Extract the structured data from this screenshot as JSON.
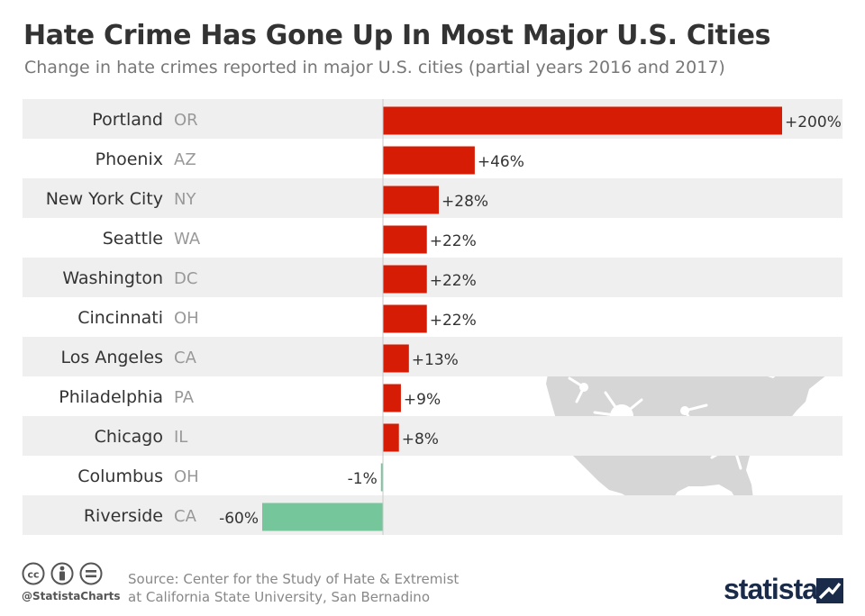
{
  "header": {
    "title": "Hate Crime Has Gone Up In Most Major U.S. Cities",
    "subtitle": "Change in hate crimes reported in major U.S. cities (partial years 2016 and 2017)"
  },
  "chart_data": {
    "type": "bar",
    "orientation": "horizontal",
    "title": "Hate Crime Has Gone Up In Most Major U.S. Cities",
    "subtitle": "Change in hate crimes reported in major U.S. cities (partial years 2016 and 2017)",
    "unit": "%",
    "categories": [
      {
        "city": "Portland",
        "state": "OR"
      },
      {
        "city": "Phoenix",
        "state": "AZ"
      },
      {
        "city": "New York City",
        "state": "NY"
      },
      {
        "city": "Seattle",
        "state": "WA"
      },
      {
        "city": "Washington",
        "state": "DC"
      },
      {
        "city": "Cincinnati",
        "state": "OH"
      },
      {
        "city": "Los Angeles",
        "state": "CA"
      },
      {
        "city": "Philadelphia",
        "state": "PA"
      },
      {
        "city": "Chicago",
        "state": "IL"
      },
      {
        "city": "Columbus",
        "state": "OH"
      },
      {
        "city": "Riverside",
        "state": "CA"
      }
    ],
    "values": [
      200,
      46,
      28,
      22,
      22,
      22,
      13,
      9,
      8,
      -1,
      -60
    ],
    "labels": [
      "+200%",
      "+46%",
      "+28%",
      "+22%",
      "+22%",
      "+22%",
      "+13%",
      "+9%",
      "+8%",
      "-1%",
      "-60%"
    ],
    "xlim": [
      -60,
      200
    ],
    "colors": {
      "positive": "#d61c04",
      "negative": "#75c69b",
      "row_band": "#efefef"
    },
    "grid": false,
    "legend": "none"
  },
  "footer": {
    "handle": "@StatistaCharts",
    "source_line1": "Source: Center for the Study of Hate & Extremist",
    "source_line2": "at California State University, San Bernadino",
    "brand": "statista"
  }
}
